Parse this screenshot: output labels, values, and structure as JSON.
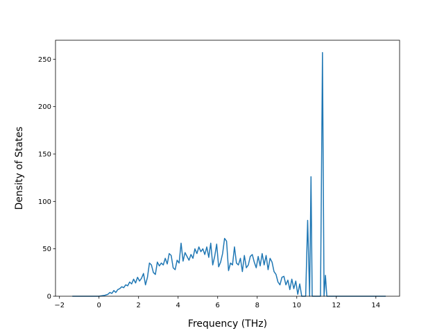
{
  "chart_data": {
    "type": "line",
    "title": "",
    "xlabel": "Frequency (THz)",
    "ylabel": "Density of States",
    "xlim": [
      -2.2,
      15.2
    ],
    "ylim": [
      0,
      270
    ],
    "grid": false,
    "legend": "none",
    "x_ticks": [
      -2,
      0,
      2,
      4,
      6,
      8,
      10,
      12,
      14
    ],
    "x_tick_labels": [
      "−2",
      "0",
      "2",
      "4",
      "6",
      "8",
      "10",
      "12",
      "14"
    ],
    "y_ticks": [
      0,
      50,
      100,
      150,
      200,
      250
    ],
    "y_tick_labels": [
      "0",
      "50",
      "100",
      "150",
      "200",
      "250"
    ],
    "series": [
      {
        "color": "#1f77b4",
        "x": [
          -1.35,
          -0.5,
          0.0,
          0.3,
          0.45,
          0.55,
          0.65,
          0.75,
          0.85,
          0.95,
          1.05,
          1.15,
          1.25,
          1.35,
          1.45,
          1.55,
          1.65,
          1.75,
          1.85,
          1.95,
          2.05,
          2.15,
          2.25,
          2.35,
          2.45,
          2.55,
          2.65,
          2.75,
          2.85,
          2.95,
          3.05,
          3.15,
          3.25,
          3.35,
          3.45,
          3.55,
          3.65,
          3.75,
          3.85,
          3.95,
          4.05,
          4.15,
          4.25,
          4.35,
          4.45,
          4.55,
          4.65,
          4.75,
          4.85,
          4.95,
          5.05,
          5.15,
          5.25,
          5.35,
          5.45,
          5.55,
          5.65,
          5.75,
          5.85,
          5.95,
          6.05,
          6.15,
          6.25,
          6.35,
          6.45,
          6.55,
          6.65,
          6.75,
          6.85,
          6.95,
          7.05,
          7.15,
          7.25,
          7.35,
          7.45,
          7.55,
          7.65,
          7.75,
          7.85,
          7.95,
          8.05,
          8.15,
          8.25,
          8.35,
          8.45,
          8.55,
          8.65,
          8.75,
          8.85,
          8.95,
          9.05,
          9.15,
          9.25,
          9.35,
          9.45,
          9.55,
          9.65,
          9.75,
          9.85,
          9.95,
          10.05,
          10.15,
          10.25,
          10.35,
          10.45,
          10.55,
          10.65,
          10.72,
          10.78,
          10.85,
          10.92,
          11.0,
          11.1,
          11.2,
          11.3,
          11.38,
          11.45,
          11.52,
          11.6,
          12.0,
          13.0,
          14.5
        ],
        "y": [
          0,
          0,
          0,
          1,
          2,
          4,
          3,
          6,
          4,
          7,
          8,
          10,
          9,
          12,
          11,
          15,
          13,
          18,
          14,
          20,
          16,
          19,
          24,
          12,
          20,
          35,
          33,
          25,
          23,
          36,
          32,
          35,
          33,
          40,
          34,
          45,
          43,
          30,
          28,
          38,
          35,
          56,
          37,
          46,
          42,
          38,
          44,
          40,
          50,
          45,
          52,
          47,
          50,
          44,
          52,
          41,
          56,
          33,
          42,
          55,
          31,
          36,
          45,
          61,
          58,
          27,
          35,
          33,
          52,
          35,
          33,
          40,
          26,
          43,
          30,
          33,
          42,
          44,
          36,
          30,
          42,
          32,
          45,
          33,
          43,
          28,
          40,
          36,
          26,
          23,
          15,
          12,
          20,
          21,
          12,
          17,
          7,
          18,
          8,
          16,
          2,
          13,
          0,
          0,
          0,
          80,
          0,
          126,
          0,
          0,
          0,
          0,
          0,
          0,
          257,
          0,
          22,
          0,
          0,
          0,
          0,
          0
        ]
      }
    ]
  }
}
